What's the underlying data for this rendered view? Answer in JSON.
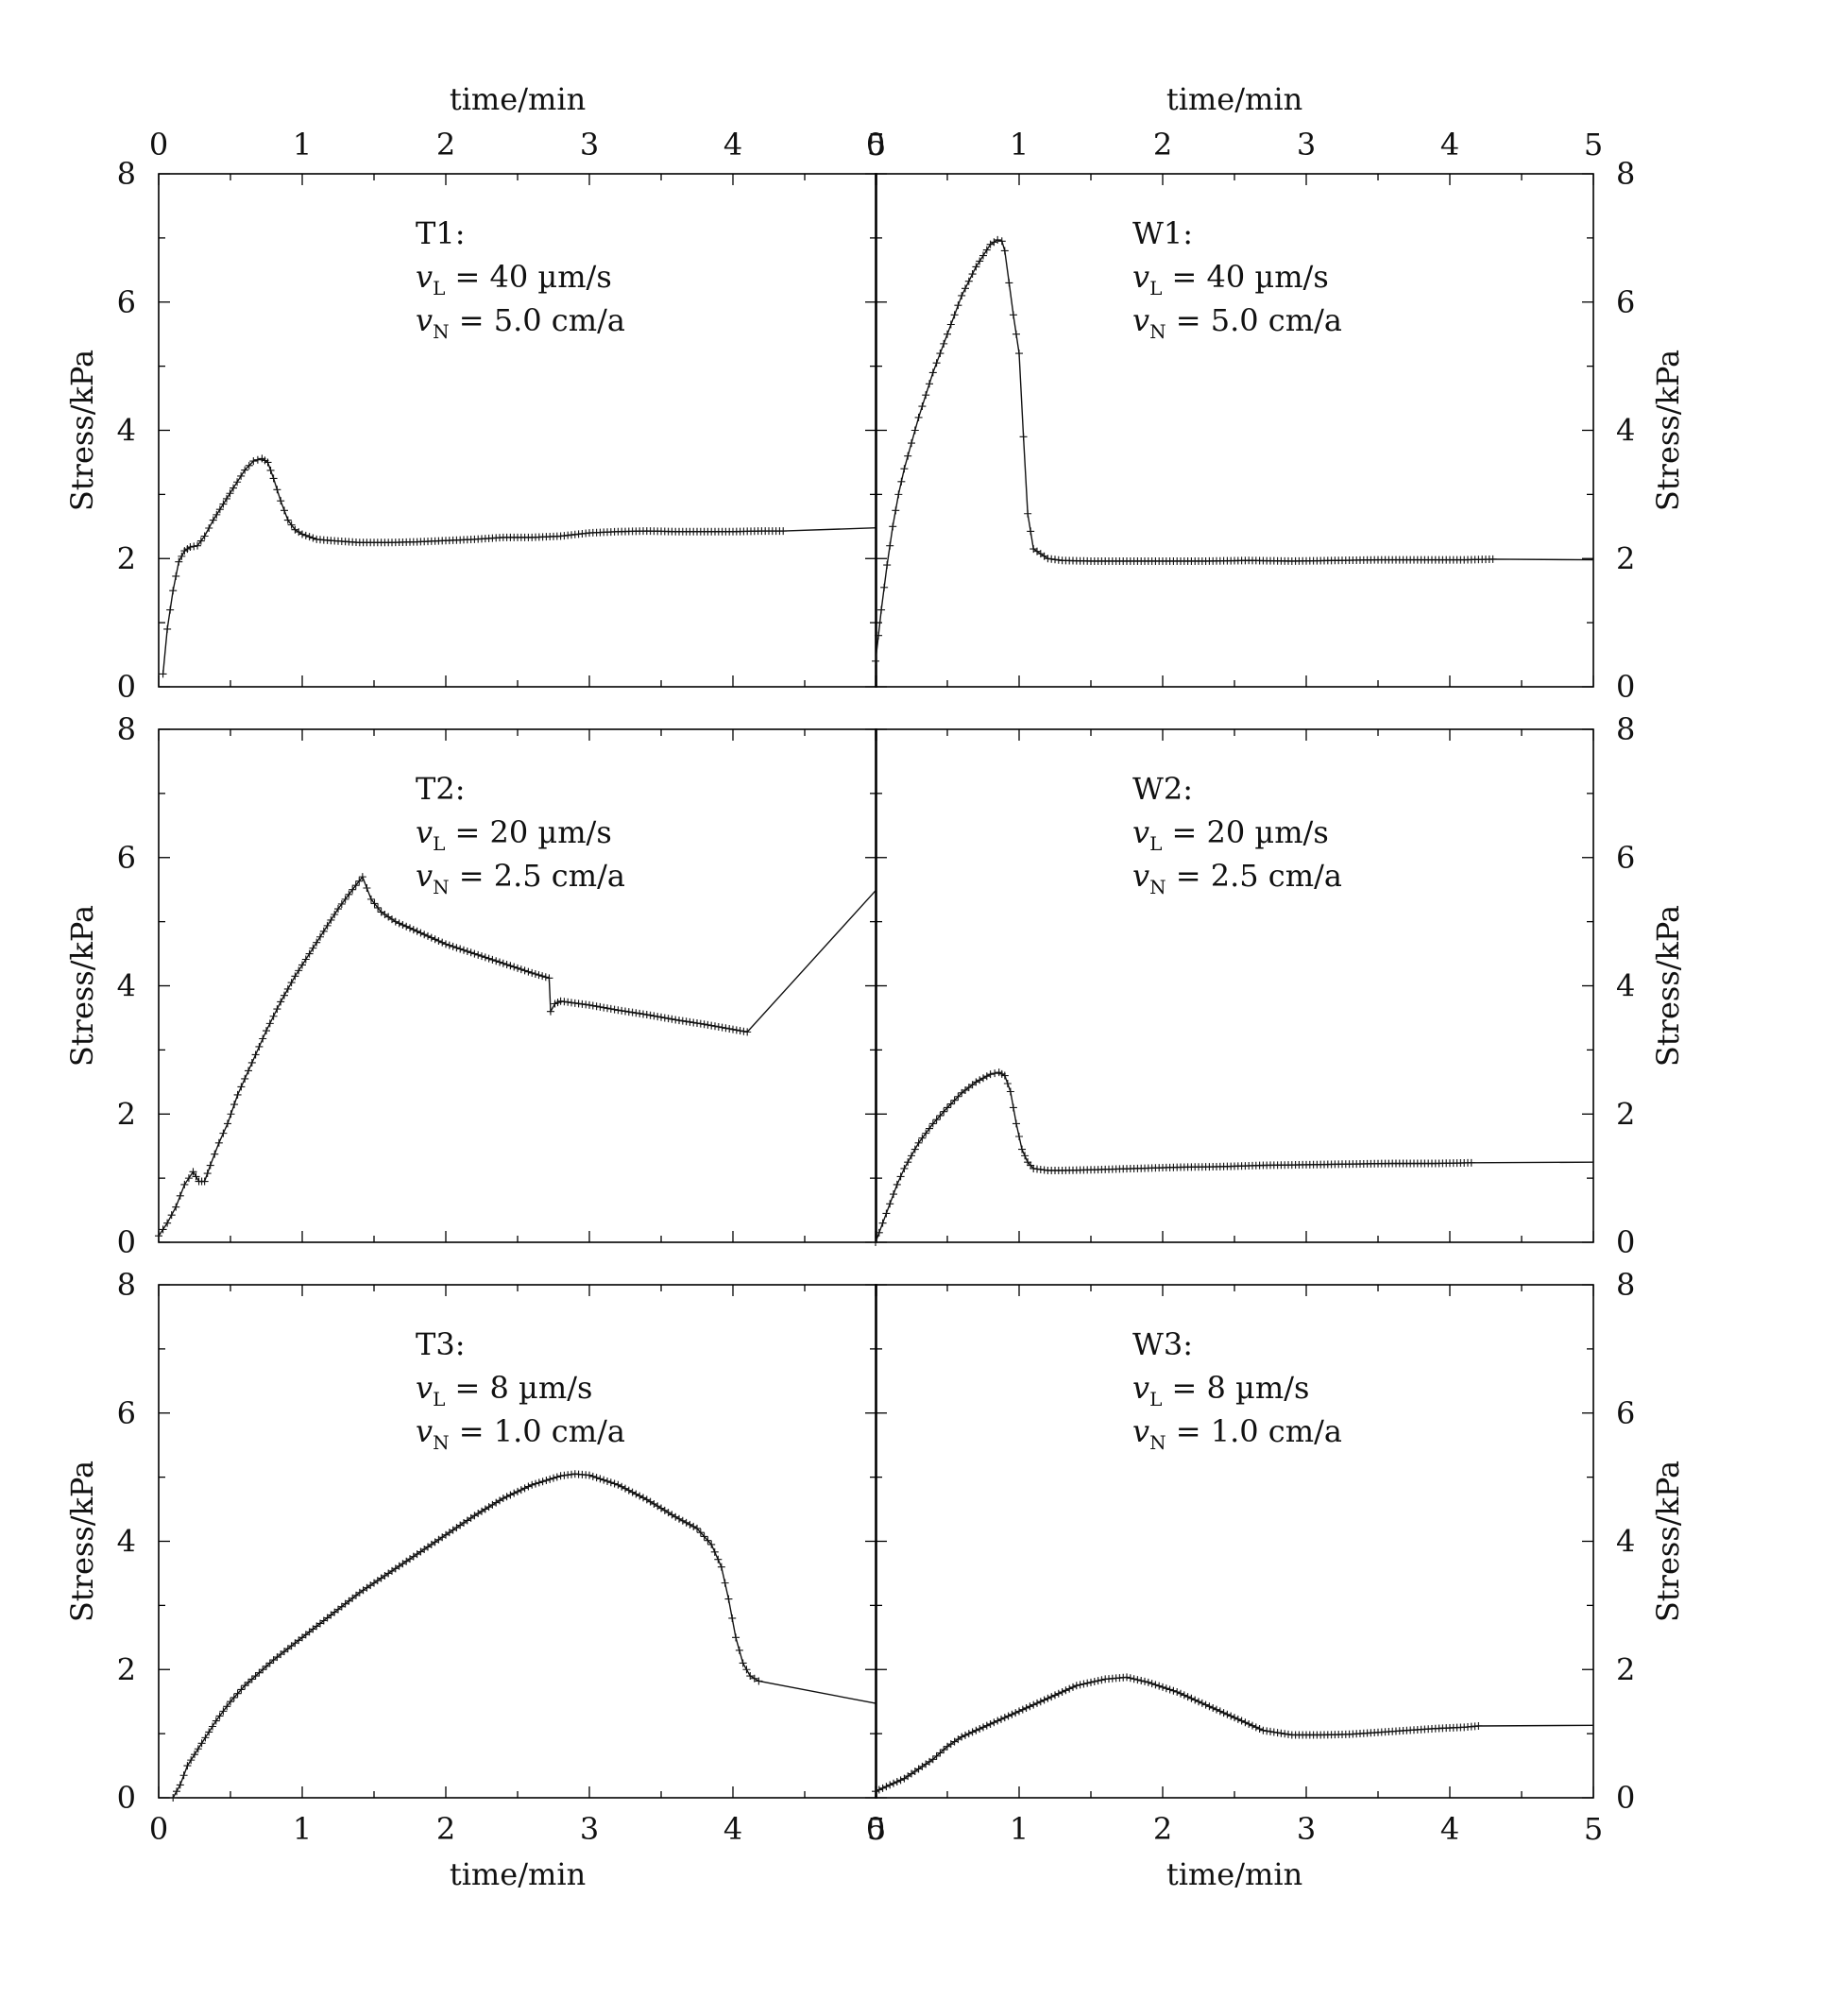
{
  "figure": {
    "x_axis_title": "time/min",
    "y_axis_title": "Stress/kPa",
    "x_ticks": [
      "0",
      "1",
      "2",
      "3",
      "4",
      "5"
    ],
    "y_ticks": [
      "0",
      "2",
      "4",
      "6",
      "8"
    ],
    "colors": {
      "line": "#111111",
      "marker": "#111111",
      "frame": "#000000"
    }
  },
  "chart_data": [
    {
      "id": "T1",
      "type": "line",
      "title": "T1:",
      "annotation": {
        "label": "T1:",
        "vL_value": "40 µm/s",
        "vN_value": "5.0 cm/a",
        "vL_sub": "L",
        "vN_sub": "N",
        "v_symbol": "v"
      },
      "xlabel": "time/min",
      "ylabel": "Stress/kPa",
      "xlim": [
        0,
        5
      ],
      "ylim": [
        0,
        8
      ],
      "x": [
        0.03,
        0.06,
        0.1,
        0.14,
        0.18,
        0.22,
        0.27,
        0.32,
        0.38,
        0.45,
        0.52,
        0.6,
        0.66,
        0.72,
        0.76,
        0.8,
        0.85,
        0.9,
        0.95,
        1.0,
        1.1,
        1.2,
        1.4,
        1.6,
        1.8,
        2.0,
        2.2,
        2.4,
        2.6,
        2.8,
        3.0,
        3.2,
        3.4,
        3.6,
        3.8,
        4.0,
        4.2,
        4.35,
        5.0
      ],
      "y": [
        0.2,
        0.9,
        1.5,
        1.95,
        2.12,
        2.18,
        2.2,
        2.35,
        2.6,
        2.85,
        3.1,
        3.38,
        3.52,
        3.56,
        3.5,
        3.25,
        2.9,
        2.6,
        2.45,
        2.38,
        2.3,
        2.28,
        2.25,
        2.25,
        2.26,
        2.28,
        2.3,
        2.33,
        2.33,
        2.35,
        2.4,
        2.42,
        2.43,
        2.42,
        2.42,
        2.42,
        2.43,
        2.43,
        2.48
      ],
      "marker_end_index": 37
    },
    {
      "id": "W1",
      "type": "line",
      "title": "W1:",
      "annotation": {
        "label": "W1:",
        "vL_value": "40 µm/s",
        "vN_value": "5.0 cm/a",
        "vL_sub": "L",
        "vN_sub": "N",
        "v_symbol": "v"
      },
      "xlabel": "time/min",
      "ylabel": "Stress/kPa",
      "xlim": [
        0,
        5
      ],
      "ylim": [
        0,
        8
      ],
      "x": [
        0.0,
        0.04,
        0.08,
        0.12,
        0.16,
        0.2,
        0.3,
        0.4,
        0.5,
        0.6,
        0.7,
        0.8,
        0.85,
        0.88,
        0.9,
        0.93,
        0.96,
        1.0,
        1.03,
        1.06,
        1.1,
        1.2,
        1.3,
        1.5,
        1.7,
        2.0,
        2.3,
        2.6,
        2.9,
        3.2,
        3.5,
        3.8,
        4.1,
        4.3,
        5.0
      ],
      "y": [
        0.4,
        1.2,
        1.9,
        2.5,
        3.0,
        3.4,
        4.2,
        4.9,
        5.5,
        6.1,
        6.55,
        6.9,
        6.97,
        6.95,
        6.8,
        6.3,
        5.8,
        5.2,
        3.9,
        2.7,
        2.15,
        2.0,
        1.97,
        1.96,
        1.96,
        1.96,
        1.96,
        1.97,
        1.96,
        1.97,
        1.98,
        1.98,
        1.98,
        1.99,
        1.98
      ],
      "marker_end_index": 33
    },
    {
      "id": "T2",
      "type": "line",
      "title": "T2:",
      "annotation": {
        "label": "T2:",
        "vL_value": "20 µm/s",
        "vN_value": "2.5 cm/a",
        "vL_sub": "L",
        "vN_sub": "N",
        "v_symbol": "v"
      },
      "xlabel": "time/min",
      "ylabel": "Stress/kPa",
      "xlim": [
        0,
        5
      ],
      "ylim": [
        0,
        8
      ],
      "x": [
        0.0,
        0.06,
        0.12,
        0.18,
        0.24,
        0.28,
        0.32,
        0.36,
        0.42,
        0.48,
        0.55,
        0.65,
        0.75,
        0.85,
        0.95,
        1.05,
        1.15,
        1.25,
        1.35,
        1.42,
        1.48,
        1.55,
        1.65,
        1.8,
        2.0,
        2.2,
        2.4,
        2.6,
        2.72,
        2.73,
        2.76,
        2.8,
        3.0,
        3.2,
        3.4,
        3.6,
        3.8,
        4.0,
        4.1,
        5.0
      ],
      "y": [
        0.1,
        0.3,
        0.55,
        0.9,
        1.1,
        0.95,
        0.95,
        1.2,
        1.55,
        1.85,
        2.3,
        2.8,
        3.3,
        3.75,
        4.15,
        4.5,
        4.85,
        5.2,
        5.5,
        5.7,
        5.35,
        5.15,
        5.0,
        4.85,
        4.65,
        4.5,
        4.35,
        4.2,
        4.12,
        3.6,
        3.72,
        3.76,
        3.7,
        3.62,
        3.55,
        3.47,
        3.4,
        3.32,
        3.28,
        5.5
      ],
      "marker_end_index": 38
    },
    {
      "id": "W2",
      "type": "line",
      "title": "W2:",
      "annotation": {
        "label": "W2:",
        "vL_value": "20 µm/s",
        "vN_value": "2.5 cm/a",
        "vL_sub": "L",
        "vN_sub": "N",
        "v_symbol": "v"
      },
      "xlabel": "time/min",
      "ylabel": "Stress/kPa",
      "xlim": [
        0,
        5
      ],
      "ylim": [
        0,
        8
      ],
      "x": [
        0.0,
        0.05,
        0.1,
        0.15,
        0.2,
        0.3,
        0.4,
        0.5,
        0.6,
        0.7,
        0.8,
        0.86,
        0.9,
        0.94,
        0.98,
        1.02,
        1.06,
        1.1,
        1.2,
        1.3,
        1.5,
        1.8,
        2.1,
        2.4,
        2.7,
        3.0,
        3.3,
        3.6,
        3.9,
        4.15,
        5.0
      ],
      "y": [
        0.0,
        0.3,
        0.6,
        0.9,
        1.15,
        1.55,
        1.85,
        2.1,
        2.33,
        2.5,
        2.62,
        2.65,
        2.6,
        2.35,
        1.85,
        1.45,
        1.25,
        1.15,
        1.12,
        1.12,
        1.13,
        1.15,
        1.17,
        1.18,
        1.2,
        1.21,
        1.22,
        1.23,
        1.23,
        1.24,
        1.25
      ],
      "marker_end_index": 29
    },
    {
      "id": "T3",
      "type": "line",
      "title": "T3:",
      "annotation": {
        "label": "T3:",
        "vL_value": "8 µm/s",
        "vN_value": "1.0 cm/a",
        "vL_sub": "L",
        "vN_sub": "N",
        "v_symbol": "v"
      },
      "xlabel": "time/min",
      "ylabel": "Stress/kPa",
      "xlim": [
        0,
        5
      ],
      "ylim": [
        0,
        8
      ],
      "x": [
        0.1,
        0.15,
        0.2,
        0.3,
        0.4,
        0.5,
        0.6,
        0.8,
        1.0,
        1.2,
        1.4,
        1.6,
        1.8,
        2.0,
        2.2,
        2.4,
        2.6,
        2.8,
        2.9,
        3.0,
        3.2,
        3.4,
        3.6,
        3.75,
        3.85,
        3.92,
        3.97,
        4.02,
        4.07,
        4.12,
        4.18,
        5.0
      ],
      "y": [
        0.0,
        0.2,
        0.5,
        0.85,
        1.2,
        1.5,
        1.75,
        2.15,
        2.5,
        2.85,
        3.2,
        3.5,
        3.8,
        4.1,
        4.4,
        4.67,
        4.88,
        5.02,
        5.05,
        5.03,
        4.88,
        4.65,
        4.38,
        4.2,
        3.95,
        3.6,
        3.1,
        2.5,
        2.1,
        1.9,
        1.82,
        1.47
      ],
      "marker_end_index": 30
    },
    {
      "id": "W3",
      "type": "line",
      "title": "W3:",
      "annotation": {
        "label": "W3:",
        "vL_value": "8 µm/s",
        "vN_value": "1.0 cm/a",
        "vL_sub": "L",
        "vN_sub": "N",
        "v_symbol": "v"
      },
      "xlabel": "time/min",
      "ylabel": "Stress/kPa",
      "xlim": [
        0,
        5
      ],
      "ylim": [
        0,
        8
      ],
      "x": [
        0.0,
        0.1,
        0.2,
        0.3,
        0.4,
        0.5,
        0.6,
        0.8,
        1.0,
        1.2,
        1.4,
        1.6,
        1.75,
        1.9,
        2.1,
        2.3,
        2.5,
        2.7,
        2.9,
        3.1,
        3.3,
        3.5,
        3.7,
        3.9,
        4.1,
        4.2,
        5.0
      ],
      "y": [
        0.1,
        0.2,
        0.3,
        0.45,
        0.6,
        0.8,
        0.95,
        1.15,
        1.35,
        1.55,
        1.75,
        1.85,
        1.88,
        1.8,
        1.65,
        1.45,
        1.25,
        1.05,
        0.98,
        0.98,
        0.99,
        1.02,
        1.05,
        1.08,
        1.1,
        1.12,
        1.13
      ],
      "marker_end_index": 25
    }
  ]
}
